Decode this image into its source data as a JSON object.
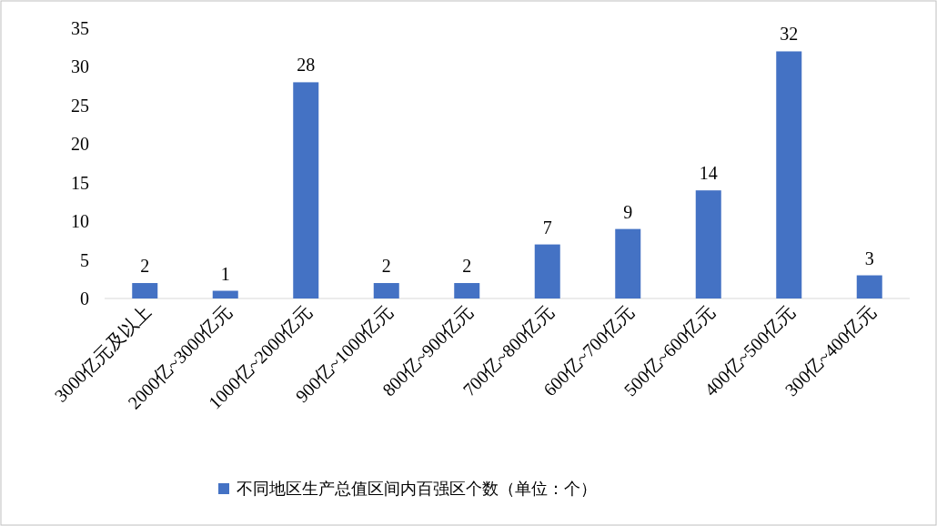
{
  "chart_data": {
    "type": "bar",
    "categories": [
      "3000亿元及以上",
      "2000亿~3000亿元",
      "1000亿~2000亿元",
      "900亿~1000亿元",
      "800亿~900亿元",
      "700亿~800亿元",
      "600亿~700亿元",
      "500亿~600亿元",
      "400亿~500亿元",
      "300亿~400亿元"
    ],
    "series": [
      {
        "name": "不同地区生产总值区间内百强区个数（单位：个）",
        "color": "#4472c4",
        "values": [
          2,
          1,
          28,
          2,
          2,
          7,
          9,
          14,
          32,
          3
        ]
      }
    ],
    "ylim": [
      0,
      35
    ],
    "yticks": [
      0,
      5,
      10,
      15,
      20,
      25,
      30,
      35
    ],
    "data_labels": true,
    "legend": "bottom"
  }
}
